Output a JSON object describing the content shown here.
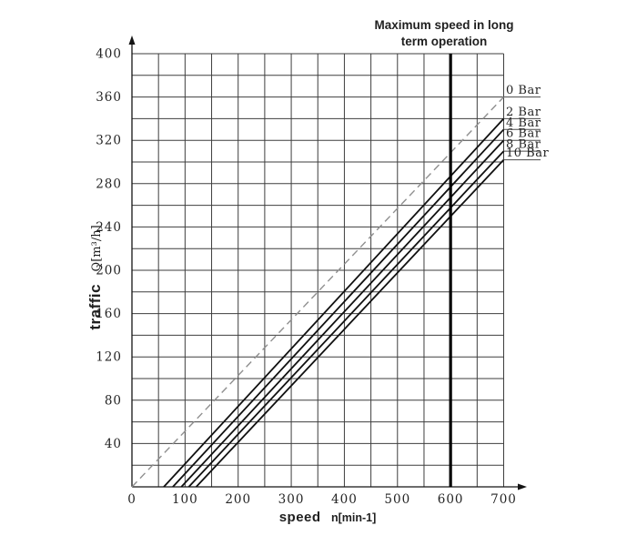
{
  "chart_data": {
    "type": "line",
    "title": "Maximum speed in long term operation",
    "annotation": {
      "line1": "Maximum speed in long",
      "line2": "term operation",
      "x": 600
    },
    "xlabel_main": "speed",
    "xlabel_unit": "n[min-1]",
    "ylabel_main": "traffic",
    "ylabel_unit": "Q[m³/h]",
    "xlim": [
      0,
      700
    ],
    "ylim": [
      0,
      400
    ],
    "x_ticks": [
      0,
      100,
      200,
      300,
      400,
      500,
      600,
      700
    ],
    "y_ticks": [
      40,
      80,
      120,
      160,
      200,
      240,
      280,
      320,
      360,
      400
    ],
    "x_minor_step": 50,
    "y_minor_step": 20,
    "grid": "on",
    "legend_position": "right-edge-inline",
    "max_speed_line": {
      "x": 600
    },
    "series": [
      {
        "name": "0 Bar",
        "style": "dashed",
        "points": [
          [
            0,
            0
          ],
          [
            700,
            360
          ]
        ]
      },
      {
        "name": "2 Bar",
        "style": "solid",
        "points": [
          [
            60,
            0
          ],
          [
            700,
            340
          ]
        ]
      },
      {
        "name": "4 Bar",
        "style": "solid",
        "points": [
          [
            77,
            0
          ],
          [
            700,
            330
          ]
        ]
      },
      {
        "name": "6 Bar",
        "style": "solid",
        "points": [
          [
            93,
            0
          ],
          [
            700,
            320
          ]
        ]
      },
      {
        "name": "8 Bar",
        "style": "solid",
        "points": [
          [
            107,
            0
          ],
          [
            700,
            310
          ]
        ]
      },
      {
        "name": "10 Bar",
        "style": "solid",
        "points": [
          [
            121,
            0
          ],
          [
            700,
            302
          ]
        ]
      }
    ]
  },
  "colors": {
    "background": "#ffffff",
    "grid": "#3e3e3e",
    "axis": "#141414",
    "series_solid": "#101010",
    "series_dashed": "#8f8f8f",
    "max_speed_line": "#000000",
    "text": "#242424",
    "legend_underline": "#4a4a4a"
  }
}
